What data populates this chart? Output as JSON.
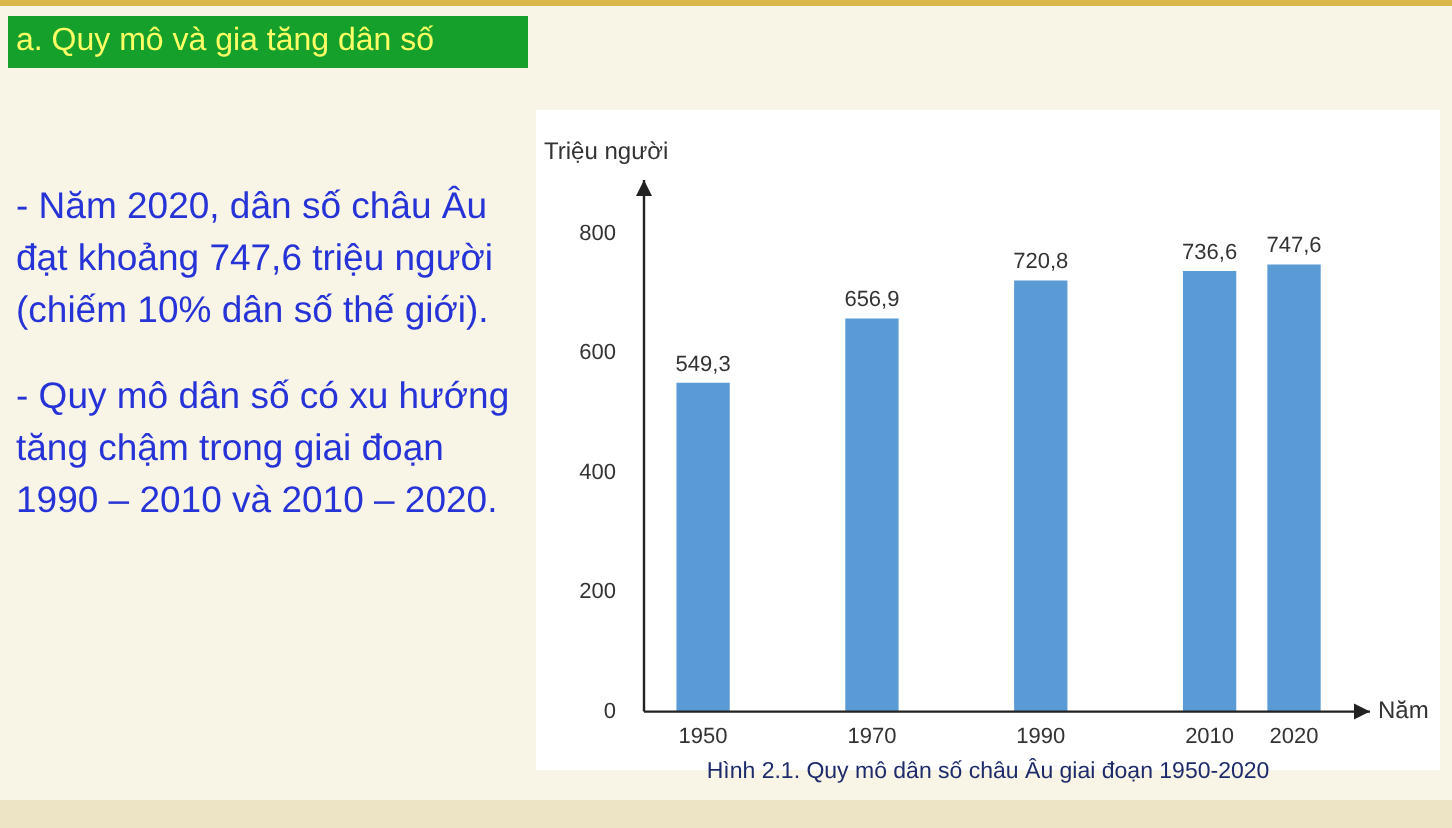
{
  "chart_data": {
    "type": "bar",
    "title": "a. Quy mô và gia tăng dân số",
    "annotations": [
      "- Năm 2020, dân số châu Âu đạt khoảng 747,6 triệu người (chiếm 10% dân số thế giới).",
      "- Quy mô dân số có xu hướng tăng chậm trong giai đoạn 1990 – 2010 và 2010 – 2020.",
      "Hình 2.1. Quy mô dân số châu Âu giai đoạn 1950-2020"
    ],
    "ylabel": "Triệu người",
    "xlabel": "Năm",
    "x": [
      1950,
      1970,
      1990,
      2010,
      2020
    ],
    "values": [
      549.3,
      656.9,
      720.8,
      736.6,
      747.6
    ],
    "value_labels": [
      "549,3",
      "656,9",
      "720,8",
      "736,6",
      "747,6"
    ],
    "color": "#5b9bd5",
    "xlim": [
      1943,
      2029
    ],
    "xticks": [
      1950,
      1970,
      1990,
      2010,
      2020
    ],
    "ylim": [
      0,
      890
    ],
    "yticks": [
      0,
      200,
      400,
      600,
      800
    ],
    "grid": false,
    "legend": false
  }
}
